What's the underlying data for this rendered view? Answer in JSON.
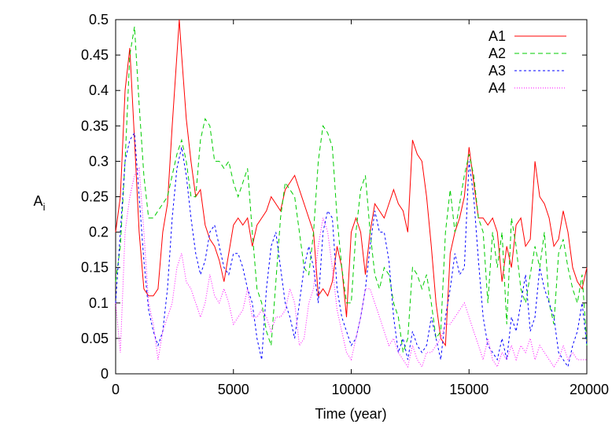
{
  "chart_data": {
    "type": "line",
    "title": "",
    "xlabel": "Time (year)",
    "ylabel_main": "A",
    "ylabel_sub": "i",
    "xlim": [
      0,
      20000
    ],
    "ylim": [
      0,
      0.5
    ],
    "xticks": [
      0,
      5000,
      10000,
      15000,
      20000
    ],
    "xtick_labels": [
      "0",
      "5000",
      "10000",
      "15000",
      "20000"
    ],
    "yticks": [
      0,
      0.05,
      0.1,
      0.15,
      0.2,
      0.25,
      0.3,
      0.35,
      0.4,
      0.45,
      0.5
    ],
    "ytick_labels": [
      "0",
      "0.05",
      "0.1",
      "0.15",
      "0.2",
      "0.25",
      "0.3",
      "0.35",
      "0.4",
      "0.45",
      "0.5"
    ],
    "grid": false,
    "legend_position": "top-right",
    "series": [
      {
        "name": "A1",
        "color": "#ff0000",
        "dash": "solid",
        "x": [
          0,
          200,
          400,
          600,
          800,
          1000,
          1200,
          1400,
          1600,
          1800,
          2000,
          2200,
          2400,
          2600,
          2700,
          2800,
          3000,
          3200,
          3400,
          3600,
          3800,
          4000,
          4200,
          4400,
          4600,
          4800,
          5000,
          5200,
          5400,
          5600,
          5800,
          6000,
          6200,
          6400,
          6600,
          6800,
          7000,
          7200,
          7400,
          7600,
          7800,
          8000,
          8200,
          8400,
          8600,
          8800,
          9000,
          9200,
          9400,
          9600,
          9800,
          10000,
          10200,
          10400,
          10600,
          10800,
          11000,
          11200,
          11400,
          11600,
          11800,
          12000,
          12200,
          12400,
          12600,
          12800,
          13000,
          13200,
          13400,
          13600,
          13800,
          14000,
          14200,
          14400,
          14600,
          14800,
          15000,
          15200,
          15400,
          15600,
          15800,
          16000,
          16200,
          16400,
          16600,
          16800,
          17000,
          17200,
          17400,
          17600,
          17800,
          18000,
          18200,
          18400,
          18600,
          18800,
          19000,
          19200,
          19400,
          19600,
          19800,
          20000
        ],
        "y": [
          0.2,
          0.25,
          0.4,
          0.46,
          0.33,
          0.2,
          0.12,
          0.11,
          0.11,
          0.12,
          0.2,
          0.24,
          0.35,
          0.45,
          0.5,
          0.45,
          0.36,
          0.3,
          0.25,
          0.26,
          0.21,
          0.19,
          0.18,
          0.16,
          0.13,
          0.17,
          0.21,
          0.22,
          0.21,
          0.22,
          0.18,
          0.21,
          0.22,
          0.23,
          0.25,
          0.24,
          0.23,
          0.26,
          0.27,
          0.28,
          0.26,
          0.24,
          0.22,
          0.2,
          0.11,
          0.12,
          0.11,
          0.13,
          0.18,
          0.15,
          0.08,
          0.2,
          0.22,
          0.2,
          0.14,
          0.2,
          0.24,
          0.23,
          0.22,
          0.24,
          0.26,
          0.24,
          0.23,
          0.2,
          0.33,
          0.31,
          0.3,
          0.25,
          0.18,
          0.1,
          0.05,
          0.04,
          0.17,
          0.2,
          0.22,
          0.25,
          0.32,
          0.27,
          0.22,
          0.22,
          0.21,
          0.22,
          0.2,
          0.13,
          0.18,
          0.15,
          0.21,
          0.22,
          0.18,
          0.19,
          0.3,
          0.25,
          0.24,
          0.22,
          0.18,
          0.19,
          0.23,
          0.2,
          0.15,
          0.13,
          0.12,
          0.15
        ]
      },
      {
        "name": "A2",
        "color": "#00cc00",
        "dash": "long",
        "x": [
          0,
          200,
          400,
          600,
          800,
          1000,
          1200,
          1400,
          1600,
          1800,
          2000,
          2200,
          2400,
          2600,
          2800,
          3000,
          3200,
          3400,
          3600,
          3800,
          4000,
          4200,
          4400,
          4600,
          4800,
          5000,
          5200,
          5400,
          5600,
          5800,
          6000,
          6200,
          6400,
          6600,
          6800,
          7000,
          7200,
          7400,
          7600,
          7800,
          8000,
          8200,
          8400,
          8600,
          8800,
          9000,
          9200,
          9400,
          9600,
          9800,
          10000,
          10200,
          10400,
          10600,
          10800,
          11000,
          11200,
          11400,
          11600,
          11800,
          12000,
          12200,
          12400,
          12600,
          12800,
          13000,
          13200,
          13400,
          13600,
          13800,
          14000,
          14200,
          14400,
          14600,
          14800,
          15000,
          15200,
          15400,
          15600,
          15800,
          16000,
          16200,
          16400,
          16600,
          16800,
          17000,
          17200,
          17400,
          17600,
          17800,
          18000,
          18200,
          18400,
          18600,
          18800,
          19000,
          19200,
          19400,
          19600,
          19800,
          20000
        ],
        "y": [
          0.13,
          0.18,
          0.3,
          0.45,
          0.49,
          0.38,
          0.28,
          0.22,
          0.22,
          0.23,
          0.24,
          0.25,
          0.28,
          0.31,
          0.33,
          0.3,
          0.25,
          0.25,
          0.33,
          0.36,
          0.35,
          0.3,
          0.3,
          0.29,
          0.3,
          0.27,
          0.25,
          0.27,
          0.29,
          0.2,
          0.12,
          0.1,
          0.06,
          0.04,
          0.13,
          0.22,
          0.27,
          0.26,
          0.25,
          0.2,
          0.15,
          0.14,
          0.2,
          0.3,
          0.35,
          0.34,
          0.32,
          0.22,
          0.15,
          0.1,
          0.1,
          0.2,
          0.26,
          0.28,
          0.2,
          0.14,
          0.12,
          0.15,
          0.14,
          0.1,
          0.08,
          0.03,
          0.05,
          0.15,
          0.14,
          0.12,
          0.14,
          0.1,
          0.05,
          0.06,
          0.2,
          0.26,
          0.2,
          0.24,
          0.28,
          0.31,
          0.28,
          0.22,
          0.2,
          0.1,
          0.2,
          0.15,
          0.2,
          0.07,
          0.22,
          0.18,
          0.12,
          0.1,
          0.14,
          0.18,
          0.15,
          0.2,
          0.1,
          0.07,
          0.17,
          0.19,
          0.15,
          0.12,
          0.1,
          0.14,
          0.04
        ]
      },
      {
        "name": "A3",
        "color": "#0000ff",
        "dash": "short",
        "x": [
          0,
          200,
          400,
          600,
          800,
          1000,
          1200,
          1400,
          1600,
          1800,
          2000,
          2200,
          2400,
          2600,
          2800,
          3000,
          3200,
          3400,
          3600,
          3800,
          4000,
          4200,
          4400,
          4600,
          4800,
          5000,
          5200,
          5400,
          5600,
          5800,
          6000,
          6200,
          6400,
          6600,
          6800,
          7000,
          7200,
          7400,
          7600,
          7800,
          8000,
          8200,
          8400,
          8600,
          8800,
          9000,
          9200,
          9400,
          9600,
          9800,
          10000,
          10200,
          10400,
          10600,
          10800,
          11000,
          11200,
          11400,
          11600,
          11800,
          12000,
          12200,
          12400,
          12600,
          12800,
          13000,
          13200,
          13400,
          13600,
          13800,
          14000,
          14200,
          14400,
          14600,
          14800,
          15000,
          15200,
          15400,
          15600,
          15800,
          16000,
          16200,
          16400,
          16600,
          16800,
          17000,
          17200,
          17400,
          17600,
          17800,
          18000,
          18200,
          18400,
          18600,
          18800,
          19000,
          19200,
          19400,
          19600,
          19800,
          20000
        ],
        "y": [
          0.1,
          0.2,
          0.3,
          0.33,
          0.34,
          0.25,
          0.16,
          0.09,
          0.06,
          0.04,
          0.06,
          0.12,
          0.22,
          0.29,
          0.32,
          0.28,
          0.22,
          0.17,
          0.14,
          0.16,
          0.2,
          0.21,
          0.18,
          0.15,
          0.14,
          0.17,
          0.17,
          0.15,
          0.12,
          0.1,
          0.05,
          0.02,
          0.12,
          0.18,
          0.2,
          0.15,
          0.1,
          0.08,
          0.05,
          0.1,
          0.15,
          0.18,
          0.15,
          0.1,
          0.2,
          0.23,
          0.22,
          0.12,
          0.08,
          0.06,
          0.04,
          0.05,
          0.08,
          0.12,
          0.18,
          0.23,
          0.2,
          0.2,
          0.16,
          0.08,
          0.03,
          0.05,
          0.02,
          0.06,
          0.04,
          0.03,
          0.04,
          0.08,
          0.05,
          0.02,
          0.08,
          0.12,
          0.17,
          0.14,
          0.15,
          0.3,
          0.25,
          0.16,
          0.08,
          0.04,
          0.03,
          0.02,
          0.05,
          0.02,
          0.08,
          0.06,
          0.1,
          0.14,
          0.06,
          0.08,
          0.15,
          0.12,
          0.1,
          0.08,
          0.03,
          0.02,
          0.01,
          0.04,
          0.06,
          0.1,
          0.04
        ]
      },
      {
        "name": "A4",
        "color": "#ff00ff",
        "dash": "dot",
        "x": [
          0,
          200,
          400,
          600,
          800,
          1000,
          1200,
          1400,
          1600,
          1800,
          2000,
          2200,
          2400,
          2600,
          2800,
          3000,
          3200,
          3400,
          3600,
          3800,
          4000,
          4200,
          4400,
          4600,
          4800,
          5000,
          5200,
          5400,
          5600,
          5800,
          6000,
          6200,
          6400,
          6600,
          6800,
          7000,
          7200,
          7400,
          7600,
          7800,
          8000,
          8200,
          8400,
          8600,
          8800,
          9000,
          9200,
          9400,
          9600,
          9800,
          10000,
          10200,
          10400,
          10600,
          10800,
          11000,
          11200,
          11400,
          11600,
          11800,
          12000,
          12200,
          12400,
          12600,
          12800,
          13000,
          13200,
          13400,
          13600,
          13800,
          14000,
          14200,
          14400,
          14600,
          14800,
          15000,
          15200,
          15400,
          15600,
          15800,
          16000,
          16200,
          16400,
          16600,
          16800,
          17000,
          17200,
          17400,
          17600,
          17800,
          18000,
          18200,
          18400,
          18600,
          18800,
          19000,
          19200,
          19400,
          19600,
          19800,
          20000
        ],
        "y": [
          0.1,
          0.03,
          0.2,
          0.25,
          0.28,
          0.29,
          0.2,
          0.1,
          0.07,
          0.02,
          0.06,
          0.08,
          0.1,
          0.15,
          0.17,
          0.13,
          0.12,
          0.1,
          0.08,
          0.1,
          0.14,
          0.11,
          0.1,
          0.12,
          0.1,
          0.07,
          0.08,
          0.09,
          0.12,
          0.08,
          0.08,
          0.09,
          0.08,
          0.06,
          0.08,
          0.08,
          0.09,
          0.12,
          0.1,
          0.04,
          0.05,
          0.1,
          0.12,
          0.18,
          0.22,
          0.2,
          0.15,
          0.09,
          0.06,
          0.03,
          0.02,
          0.05,
          0.08,
          0.12,
          0.12,
          0.1,
          0.08,
          0.06,
          0.04,
          0.05,
          0.03,
          0.02,
          0.01,
          0.04,
          0.02,
          0.01,
          0.03,
          0.03,
          0.04,
          0.05,
          0.07,
          0.07,
          0.08,
          0.09,
          0.1,
          0.08,
          0.06,
          0.04,
          0.02,
          0.05,
          0.02,
          0.01,
          0.03,
          0.02,
          0.04,
          0.02,
          0.04,
          0.03,
          0.05,
          0.02,
          0.04,
          0.03,
          0.02,
          0.01,
          0.02,
          0.04,
          0.02,
          0.03,
          0.02,
          0.02,
          0.02
        ]
      }
    ]
  }
}
